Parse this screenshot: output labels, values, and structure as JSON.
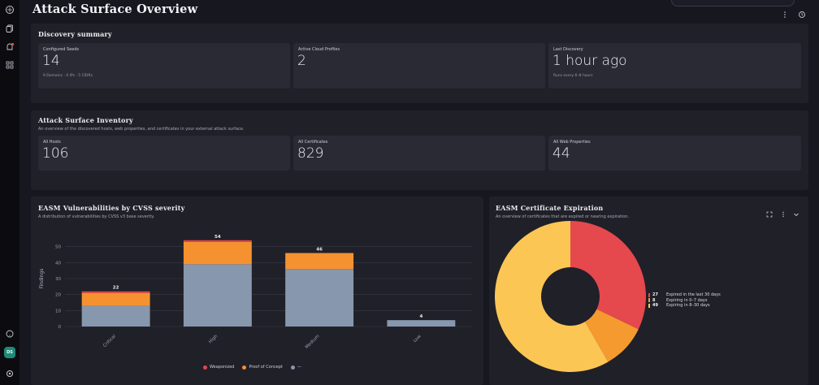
{
  "page": {
    "title": "Attack Surface Overview"
  },
  "header": {
    "pill_text": ""
  },
  "discovery": {
    "title": "Discovery summary",
    "stats": [
      {
        "label": "Configured Seeds",
        "value": "14",
        "sub": "9 Domains · 0 IPs · 5 CIDRs"
      },
      {
        "label": "Active Cloud Profiles",
        "value": "2",
        "sub": ""
      },
      {
        "label": "Last Discovery",
        "value": "1 hour ago",
        "sub": "Runs every 6–8 hours"
      }
    ]
  },
  "inventory": {
    "title": "Attack Surface Inventory",
    "subtitle": "An overview of the discovered hosts, web properties, and certificates in your external attack surface.",
    "stats": [
      {
        "label": "All Hosts",
        "value": "106"
      },
      {
        "label": "All Certificates",
        "value": "829"
      },
      {
        "label": "All Web Properties",
        "value": "44"
      }
    ]
  },
  "vuln_panel": {
    "title": "EASM Vulnerabilities by CVSS severity",
    "subtitle": "A distribution of vulnerabilities by CVSS v3 base severity."
  },
  "cert_panel": {
    "title": "EASM Certificate Expiration",
    "subtitle": "An overview of certificates that are expired or nearing expiration."
  },
  "colors": {
    "weaponized": "#e5484d",
    "poc": "#f5922f",
    "other": "#8797ae",
    "cert_expired": "#e5484d",
    "cert_0_7": "#f59a2f",
    "cert_8_30": "#fbc654"
  },
  "chart_data": [
    {
      "type": "bar",
      "stacked": true,
      "title": "EASM Vulnerabilities by CVSS severity",
      "ylabel": "Findings",
      "ylim": [
        0,
        60
      ],
      "yticks": [
        0,
        10,
        20,
        30,
        40,
        50
      ],
      "grid": true,
      "legend_placement": "bottom",
      "categories": [
        "Critical",
        "High",
        "Medium",
        "Low"
      ],
      "totals": [
        22,
        54,
        46,
        4
      ],
      "series": [
        {
          "name": "—",
          "values": [
            13,
            39,
            36,
            4
          ],
          "color": "#8797ae"
        },
        {
          "name": "Proof of Concept",
          "values": [
            8,
            14,
            10,
            0
          ],
          "color": "#f5922f"
        },
        {
          "name": "Weaponized",
          "values": [
            1,
            1,
            0,
            0
          ],
          "color": "#e5484d"
        }
      ]
    },
    {
      "type": "pie",
      "donut": true,
      "title": "EASM Certificate Expiration",
      "legend_placement": "right",
      "slices": [
        {
          "label": "Expired in the last 30 days",
          "value": 27,
          "color": "#e5484d"
        },
        {
          "label": "Expiring in 0–7 days",
          "value": 8,
          "color": "#f59a2f"
        },
        {
          "label": "Expiring in 8–30 days",
          "value": 49,
          "color": "#fbc654"
        }
      ]
    }
  ]
}
